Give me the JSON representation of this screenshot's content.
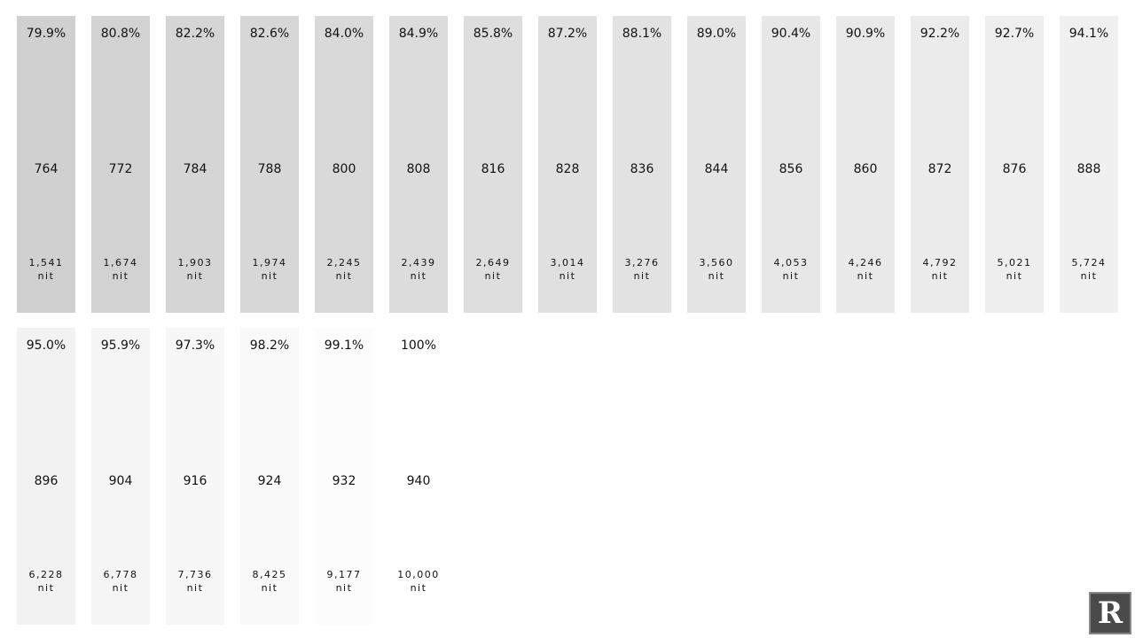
{
  "swatches": [
    {
      "percent": "79.9%",
      "code": "764",
      "nits": "1,541",
      "unit": "nit",
      "color": "#d0d0d0"
    },
    {
      "percent": "80.8%",
      "code": "772",
      "nits": "1,674",
      "unit": "nit",
      "color": "#d2d2d2"
    },
    {
      "percent": "82.2%",
      "code": "784",
      "nits": "1,903",
      "unit": "nit",
      "color": "#d5d5d5"
    },
    {
      "percent": "82.6%",
      "code": "788",
      "nits": "1,974",
      "unit": "nit",
      "color": "#d7d7d7"
    },
    {
      "percent": "84.0%",
      "code": "800",
      "nits": "2,245",
      "unit": "nit",
      "color": "#d9d9d9"
    },
    {
      "percent": "84.9%",
      "code": "808",
      "nits": "2,439",
      "unit": "nit",
      "color": "#dcdcdc"
    },
    {
      "percent": "85.8%",
      "code": "816",
      "nits": "2,649",
      "unit": "nit",
      "color": "#dedede"
    },
    {
      "percent": "87.2%",
      "code": "828",
      "nits": "3,014",
      "unit": "nit",
      "color": "#e0e0e0"
    },
    {
      "percent": "88.1%",
      "code": "836",
      "nits": "3,276",
      "unit": "nit",
      "color": "#e2e2e2"
    },
    {
      "percent": "89.0%",
      "code": "844",
      "nits": "3,560",
      "unit": "nit",
      "color": "#e5e5e5"
    },
    {
      "percent": "90.4%",
      "code": "856",
      "nits": "4,053",
      "unit": "nit",
      "color": "#e7e7e7"
    },
    {
      "percent": "90.9%",
      "code": "860",
      "nits": "4,246",
      "unit": "nit",
      "color": "#e9e9e9"
    },
    {
      "percent": "92.2%",
      "code": "872",
      "nits": "4,792",
      "unit": "nit",
      "color": "#ececec"
    },
    {
      "percent": "92.7%",
      "code": "876",
      "nits": "5,021",
      "unit": "nit",
      "color": "#eeeeee"
    },
    {
      "percent": "94.1%",
      "code": "888",
      "nits": "5,724",
      "unit": "nit",
      "color": "#f0f0f0"
    },
    {
      "percent": "95.0%",
      "code": "896",
      "nits": "6,228",
      "unit": "nit",
      "color": "#f2f2f2"
    },
    {
      "percent": "95.9%",
      "code": "904",
      "nits": "6,778",
      "unit": "nit",
      "color": "#f5f5f5"
    },
    {
      "percent": "97.3%",
      "code": "916",
      "nits": "7,736",
      "unit": "nit",
      "color": "#f7f7f7"
    },
    {
      "percent": "98.2%",
      "code": "924",
      "nits": "8,425",
      "unit": "nit",
      "color": "#f9f9f9"
    },
    {
      "percent": "99.1%",
      "code": "932",
      "nits": "9,177",
      "unit": "nit",
      "color": "#fcfcfc"
    },
    {
      "percent": "100%",
      "code": "940",
      "nits": "10,000",
      "unit": "nit",
      "color": "#fefefe"
    }
  ],
  "logo": "R"
}
